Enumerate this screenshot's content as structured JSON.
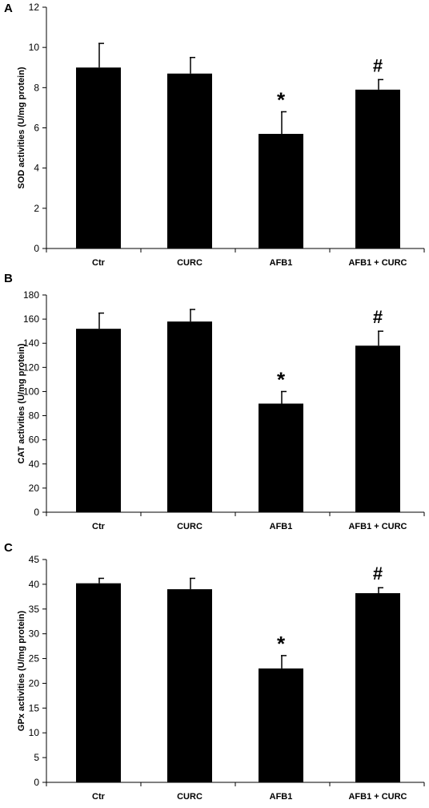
{
  "chart_data": [
    {
      "panel": "A",
      "type": "bar",
      "ylabel": "SOD  activities (U/mg protein)",
      "categories": [
        "Ctr",
        "CURC",
        "AFB1",
        "AFB1 + CURC"
      ],
      "values": [
        9.0,
        8.7,
        5.7,
        7.9
      ],
      "errors": [
        1.2,
        0.8,
        1.1,
        0.5
      ],
      "significance": [
        "",
        "",
        "*",
        "#"
      ],
      "ylim": [
        0,
        12
      ],
      "yticks": [
        "0",
        "2",
        "4",
        "6",
        "8",
        "10",
        "12"
      ],
      "bar_color": "#000000",
      "grid": false,
      "legend": "none"
    },
    {
      "panel": "B",
      "type": "bar",
      "ylabel": "CAT activities (U/mg protein)",
      "categories": [
        "Ctr",
        "CURC",
        "AFB1",
        "AFB1 + CURC"
      ],
      "values": [
        152,
        158,
        90,
        138
      ],
      "errors": [
        13,
        10,
        10,
        12
      ],
      "significance": [
        "",
        "",
        "*",
        "#"
      ],
      "ylim": [
        0,
        180
      ],
      "yticks": [
        "0",
        "20",
        "40",
        "60",
        "80",
        "100",
        "120",
        "140",
        "160",
        "180"
      ],
      "bar_color": "#000000",
      "grid": false,
      "legend": "none"
    },
    {
      "panel": "C",
      "type": "bar",
      "ylabel": "GPx activities (U/mg protein)",
      "categories": [
        "Ctr",
        "CURC",
        "AFB1",
        "AFB1 + CURC"
      ],
      "values": [
        40.2,
        39.0,
        23.0,
        38.2
      ],
      "errors": [
        1.0,
        2.2,
        2.6,
        1.1
      ],
      "significance": [
        "",
        "",
        "*",
        "#"
      ],
      "ylim": [
        0,
        45
      ],
      "yticks": [
        "0",
        "5",
        "10",
        "15",
        "20",
        "25",
        "30",
        "35",
        "40",
        "45"
      ],
      "bar_color": "#000000",
      "grid": false,
      "legend": "none"
    }
  ]
}
